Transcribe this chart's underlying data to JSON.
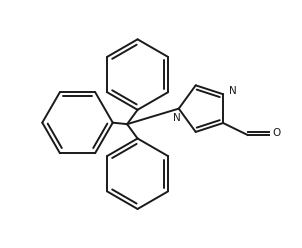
{
  "background_color": "#ffffff",
  "line_color": "#1a1a1a",
  "line_width": 1.4,
  "fig_width": 3.02,
  "fig_height": 2.48,
  "dpi": 100,
  "xlim": [
    0,
    10
  ],
  "ylim": [
    0,
    8.21
  ],
  "trityl_x": 4.2,
  "trityl_y": 4.1,
  "hex_r": 1.18,
  "pent_r": 0.82,
  "n_fontsize": 7.5,
  "o_fontsize": 7.5
}
